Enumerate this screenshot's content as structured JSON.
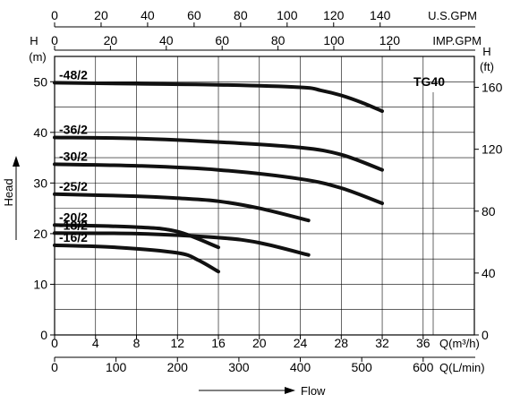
{
  "chart_data": {
    "type": "line",
    "model": "TG40",
    "y_left": {
      "label_top": "H",
      "label_unit": "(m)",
      "range": [
        0,
        55
      ],
      "ticks": [
        "0",
        "10",
        "20",
        "30",
        "40",
        "50"
      ],
      "title": "Head"
    },
    "y_right": {
      "label_top": "H",
      "label_unit": "(ft)",
      "range": [
        0,
        180
      ],
      "ticks": [
        "0",
        "40",
        "80",
        "120",
        "160"
      ]
    },
    "x_primary": {
      "unit": "Q(m³/h)",
      "range": [
        0,
        41
      ],
      "ticks": [
        "0",
        "4",
        "8",
        "12",
        "16",
        "20",
        "24",
        "28",
        "32",
        "36"
      ]
    },
    "x_lmin": {
      "unit": "Q(L/min)",
      "ticks": [
        "0",
        "100",
        "200",
        "300",
        "400",
        "500",
        "600"
      ]
    },
    "x_usgpm": {
      "unit": "U.S.GPM",
      "ticks": [
        "0",
        "20",
        "40",
        "60",
        "80",
        "100",
        "120",
        "140"
      ]
    },
    "x_impgpm": {
      "unit": "IMP.GPM",
      "ticks": [
        "0",
        "20",
        "40",
        "60",
        "80",
        "100",
        "120"
      ]
    },
    "xlabel": "Flow",
    "grid": true,
    "series": [
      {
        "name": "-48/2",
        "x": [
          0,
          8,
          16,
          24,
          26,
          28,
          30,
          32
        ],
        "y": [
          49.8,
          49.6,
          49.4,
          48.9,
          48.3,
          47.3,
          45.9,
          44.2
        ]
      },
      {
        "name": "-36/2",
        "x": [
          0,
          8,
          16,
          24,
          28,
          32
        ],
        "y": [
          39.0,
          38.8,
          38.1,
          37.0,
          35.6,
          32.6
        ]
      },
      {
        "name": "-30/2",
        "x": [
          0,
          8,
          16,
          24,
          28,
          32
        ],
        "y": [
          33.7,
          33.4,
          32.6,
          30.8,
          29.0,
          26.0
        ]
      },
      {
        "name": "-25/2",
        "x": [
          0,
          8,
          12,
          16,
          20,
          24.8
        ],
        "y": [
          27.8,
          27.4,
          27.0,
          26.4,
          25.0,
          22.6
        ]
      },
      {
        "name": "-20/2",
        "x": [
          0,
          8,
          12,
          16
        ],
        "y": [
          21.7,
          21.3,
          20.4,
          17.3
        ]
      },
      {
        "name": "-18/2",
        "x": [
          0,
          8,
          16,
          20,
          24.8
        ],
        "y": [
          20.1,
          20.0,
          19.2,
          18.2,
          15.8
        ]
      },
      {
        "name": "-16/2",
        "x": [
          0,
          6,
          12,
          14,
          16
        ],
        "y": [
          17.7,
          17.3,
          16.2,
          14.8,
          12.5
        ]
      }
    ]
  }
}
